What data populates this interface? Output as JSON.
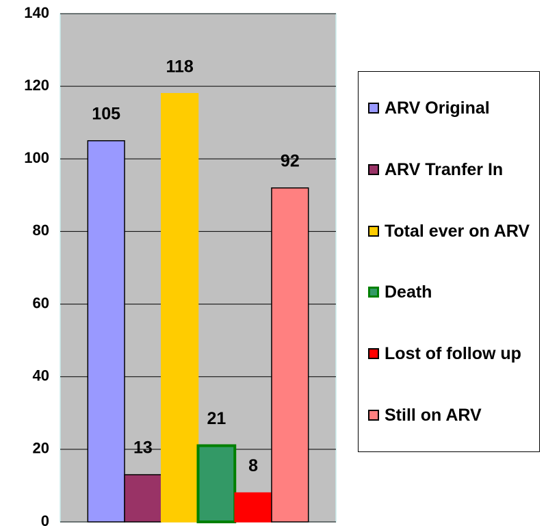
{
  "chart_data": {
    "type": "bar",
    "series": [
      {
        "name": "ARV Original",
        "color": "#9999ff",
        "border": "#000000",
        "values": [
          105
        ]
      },
      {
        "name": "ARV Tranfer In",
        "color": "#993366",
        "border": "#000000",
        "values": [
          13
        ]
      },
      {
        "name": "Total ever on ARV",
        "color": "#ffcc00",
        "border": "#ffcc00",
        "values": [
          118
        ]
      },
      {
        "name": "Death",
        "color": "#339966",
        "border": "#008000",
        "values": [
          21
        ]
      },
      {
        "name": "Lost of follow up",
        "color": "#ff0000",
        "border": "#ff0000",
        "values": [
          8
        ]
      },
      {
        "name": "Still on ARV",
        "color": "#ff8080",
        "border": "#000000",
        "values": [
          92
        ]
      }
    ],
    "ylim": [
      0,
      140
    ],
    "yticks": [
      0,
      20,
      40,
      60,
      80,
      100,
      120,
      140
    ],
    "grid": true,
    "legend": "right"
  }
}
